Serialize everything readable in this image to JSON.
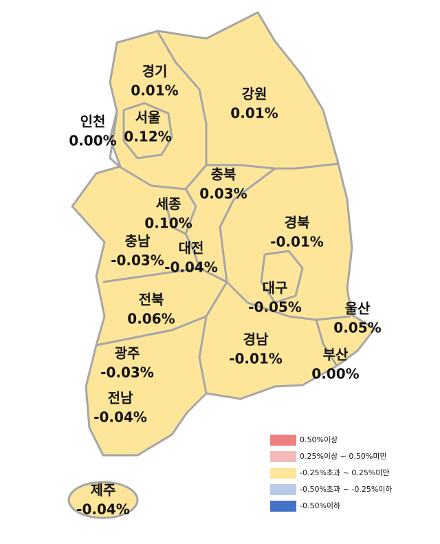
{
  "regions": [
    {
      "name": "경기",
      "value": "0.01%"
    },
    {
      "name": "강원",
      "value": "0.01%"
    },
    {
      "name": "인천",
      "value": "0.00%"
    },
    {
      "name": "서울",
      "value": "0.12%"
    },
    {
      "name": "충북",
      "value": "0.03%"
    },
    {
      "name": "세종",
      "value": "0.10%"
    },
    {
      "name": "충남",
      "value": "-0.03%"
    },
    {
      "name": "대전",
      "value": "-0.04%"
    },
    {
      "name": "경북",
      "value": "-0.01%"
    },
    {
      "name": "대구",
      "value": "-0.05%"
    },
    {
      "name": "울산",
      "value": "0.05%"
    },
    {
      "name": "전북",
      "value": "0.06%"
    },
    {
      "name": "경남",
      "value": "-0.01%"
    },
    {
      "name": "부산",
      "value": "0.00%"
    },
    {
      "name": "광주",
      "value": "-0.03%"
    },
    {
      "name": "전남",
      "value": "-0.04%"
    },
    {
      "name": "제주",
      "value": "-0.04%"
    }
  ],
  "legend": [
    {
      "label": "0.50%이상",
      "color": "#f08080"
    },
    {
      "label": "0.25%이상 ~ 0.50%미만",
      "color": "#f4b9b9"
    },
    {
      "label": "-0.25%초과 ~ 0.25%미만",
      "color": "#fde59a"
    },
    {
      "label": "-0.50%초과 ~ -0.25%이하",
      "color": "#b8cbe8"
    },
    {
      "label": "-0.50%이하",
      "color": "#4472c4"
    }
  ]
}
